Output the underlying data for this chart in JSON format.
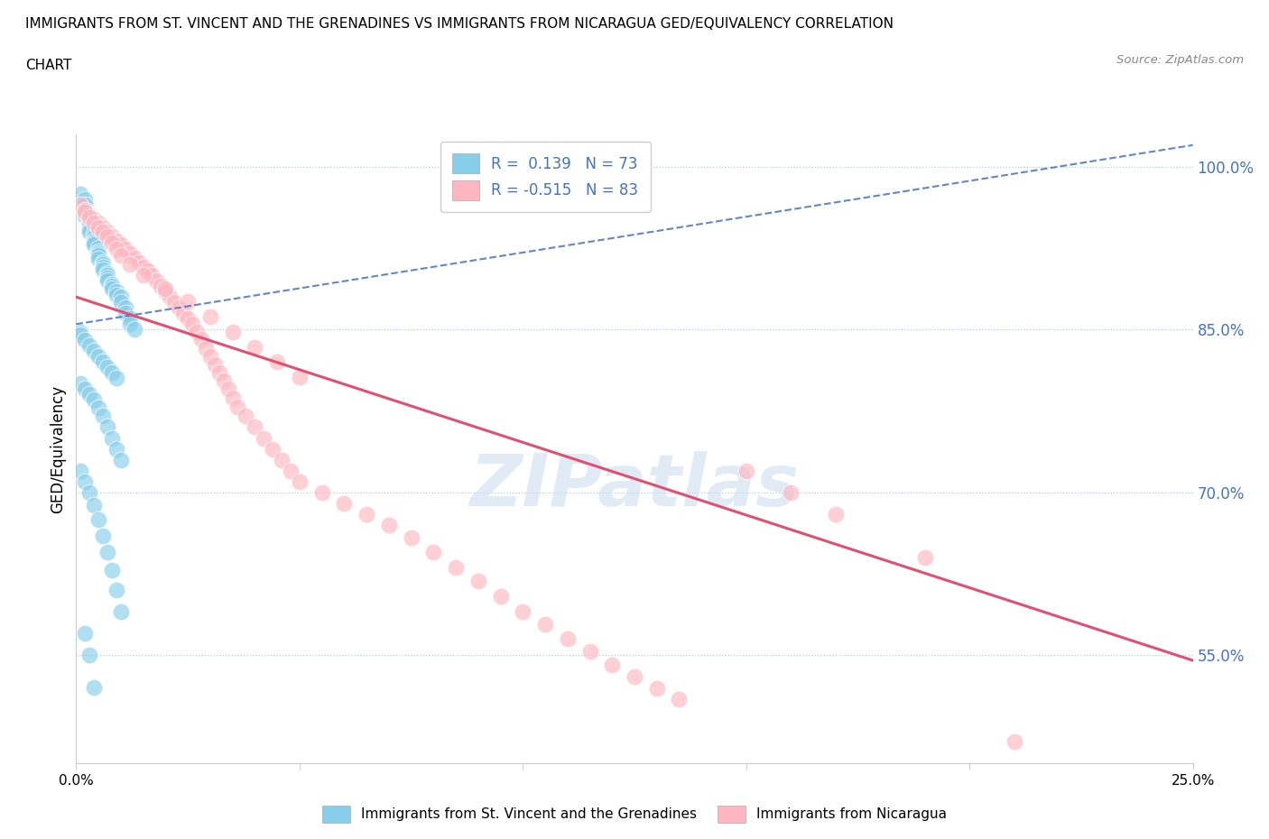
{
  "title_line1": "IMMIGRANTS FROM ST. VINCENT AND THE GRENADINES VS IMMIGRANTS FROM NICARAGUA GED/EQUIVALENCY CORRELATION",
  "title_line2": "CHART",
  "source": "Source: ZipAtlas.com",
  "ylabel": "GED/Equivalency",
  "xmin": 0.0,
  "xmax": 0.25,
  "ymin": 0.45,
  "ymax": 1.03,
  "yticks": [
    0.55,
    0.7,
    0.85,
    1.0
  ],
  "ytick_labels": [
    "55.0%",
    "70.0%",
    "85.0%",
    "100.0%"
  ],
  "xticks": [
    0.0,
    0.05,
    0.1,
    0.15,
    0.2,
    0.25
  ],
  "xtick_labels": [
    "0.0%",
    "",
    "",
    "",
    "",
    "25.0%"
  ],
  "legend_r1": "R =  0.139",
  "legend_n1": "N = 73",
  "legend_r2": "R = -0.515",
  "legend_n2": "N = 83",
  "color_blue": "#87CEEB",
  "color_pink": "#FFB6C1",
  "line_color_blue": "#4472C4",
  "line_color_pink": "#E05070",
  "watermark": "ZIPatlas",
  "blue_x": [
    0.001,
    0.002,
    0.002,
    0.002,
    0.002,
    0.003,
    0.003,
    0.003,
    0.003,
    0.003,
    0.004,
    0.004,
    0.004,
    0.004,
    0.004,
    0.005,
    0.005,
    0.005,
    0.005,
    0.005,
    0.006,
    0.006,
    0.006,
    0.006,
    0.007,
    0.007,
    0.007,
    0.007,
    0.008,
    0.008,
    0.008,
    0.009,
    0.009,
    0.01,
    0.01,
    0.011,
    0.011,
    0.012,
    0.012,
    0.013,
    0.001,
    0.001,
    0.002,
    0.003,
    0.004,
    0.005,
    0.006,
    0.007,
    0.008,
    0.009,
    0.001,
    0.002,
    0.003,
    0.004,
    0.005,
    0.006,
    0.007,
    0.008,
    0.009,
    0.01,
    0.001,
    0.002,
    0.003,
    0.004,
    0.005,
    0.006,
    0.007,
    0.008,
    0.009,
    0.01,
    0.002,
    0.003,
    0.004
  ],
  "blue_y": [
    0.975,
    0.97,
    0.965,
    0.96,
    0.955,
    0.95,
    0.948,
    0.945,
    0.942,
    0.94,
    0.938,
    0.935,
    0.932,
    0.93,
    0.928,
    0.925,
    0.922,
    0.92,
    0.918,
    0.915,
    0.912,
    0.91,
    0.908,
    0.905,
    0.902,
    0.9,
    0.898,
    0.895,
    0.892,
    0.89,
    0.888,
    0.885,
    0.882,
    0.88,
    0.875,
    0.87,
    0.865,
    0.86,
    0.855,
    0.85,
    0.848,
    0.845,
    0.84,
    0.835,
    0.83,
    0.825,
    0.82,
    0.815,
    0.81,
    0.805,
    0.8,
    0.795,
    0.79,
    0.785,
    0.778,
    0.77,
    0.76,
    0.75,
    0.74,
    0.73,
    0.72,
    0.71,
    0.7,
    0.688,
    0.675,
    0.66,
    0.645,
    0.628,
    0.61,
    0.59,
    0.57,
    0.55,
    0.52
  ],
  "pink_x": [
    0.001,
    0.002,
    0.003,
    0.004,
    0.005,
    0.006,
    0.007,
    0.008,
    0.009,
    0.01,
    0.011,
    0.012,
    0.013,
    0.014,
    0.015,
    0.016,
    0.017,
    0.018,
    0.019,
    0.02,
    0.021,
    0.022,
    0.023,
    0.024,
    0.025,
    0.026,
    0.027,
    0.028,
    0.029,
    0.03,
    0.031,
    0.032,
    0.033,
    0.034,
    0.035,
    0.036,
    0.038,
    0.04,
    0.042,
    0.044,
    0.046,
    0.048,
    0.05,
    0.055,
    0.06,
    0.065,
    0.07,
    0.075,
    0.08,
    0.085,
    0.09,
    0.095,
    0.1,
    0.105,
    0.11,
    0.115,
    0.12,
    0.125,
    0.13,
    0.135,
    0.002,
    0.003,
    0.004,
    0.005,
    0.006,
    0.007,
    0.008,
    0.009,
    0.01,
    0.012,
    0.015,
    0.02,
    0.025,
    0.03,
    0.035,
    0.04,
    0.045,
    0.05,
    0.15,
    0.16,
    0.17,
    0.19,
    0.21
  ],
  "pink_y": [
    0.965,
    0.96,
    0.955,
    0.952,
    0.948,
    0.944,
    0.94,
    0.936,
    0.932,
    0.928,
    0.924,
    0.92,
    0.916,
    0.912,
    0.908,
    0.904,
    0.9,
    0.895,
    0.89,
    0.885,
    0.88,
    0.875,
    0.87,
    0.865,
    0.86,
    0.855,
    0.848,
    0.841,
    0.833,
    0.825,
    0.818,
    0.81,
    0.803,
    0.795,
    0.787,
    0.779,
    0.77,
    0.76,
    0.75,
    0.74,
    0.73,
    0.72,
    0.71,
    0.7,
    0.69,
    0.68,
    0.67,
    0.658,
    0.645,
    0.631,
    0.618,
    0.604,
    0.59,
    0.578,
    0.565,
    0.553,
    0.541,
    0.53,
    0.519,
    0.509,
    0.958,
    0.953,
    0.948,
    0.944,
    0.94,
    0.936,
    0.93,
    0.924,
    0.918,
    0.91,
    0.9,
    0.888,
    0.876,
    0.862,
    0.848,
    0.834,
    0.82,
    0.806,
    0.72,
    0.7,
    0.68,
    0.64,
    0.47
  ]
}
